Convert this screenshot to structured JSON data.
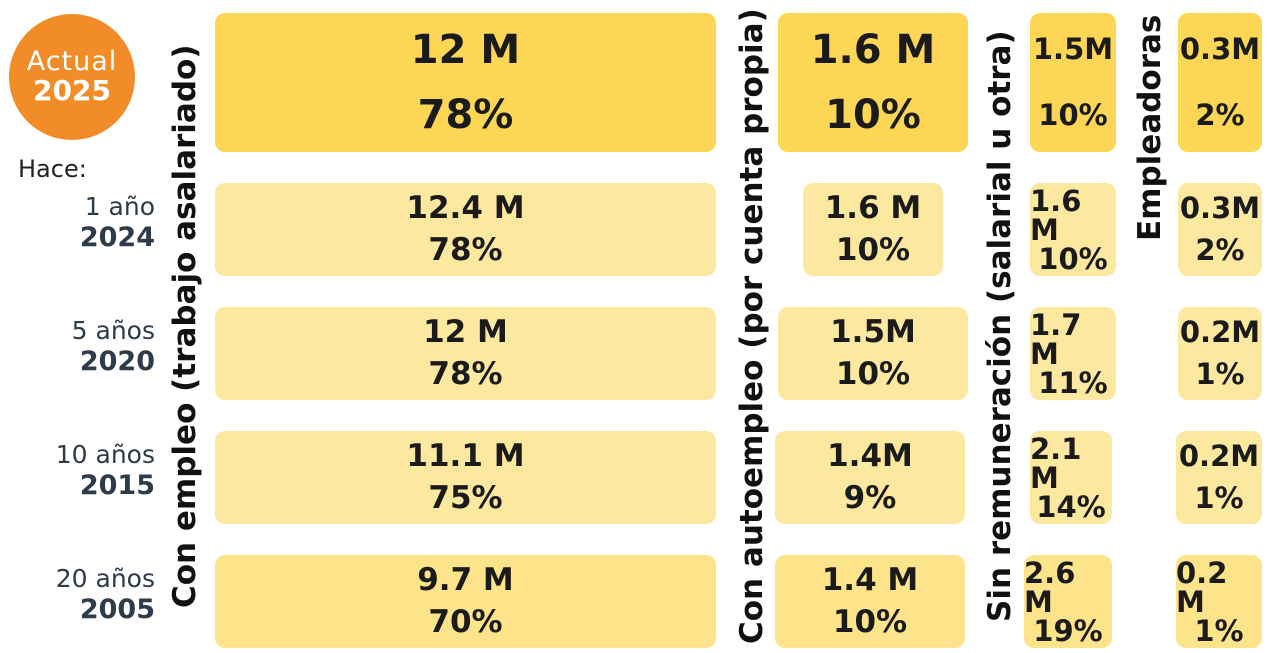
{
  "badge": {
    "line1": "Actual",
    "line2": "2025"
  },
  "hace": "Hace:",
  "headers": [
    "Con empleo (trabajo asalariado)",
    "Con autoempleo (por cuenta propia)",
    "Sin remuneración (salarial u otra)",
    "Empleadoras"
  ],
  "rows": [
    {
      "cells": [
        {
          "amount": "12 M",
          "share": "78%"
        },
        {
          "amount": "1.6 M",
          "share": "10%"
        },
        {
          "amount": "1.5M",
          "share": "10%"
        },
        {
          "amount": "0.3M",
          "share": "2%"
        }
      ]
    },
    {
      "ago": "1 año",
      "year": "2024",
      "cells": [
        {
          "amount": "12.4 M",
          "share": "78%"
        },
        {
          "amount": "1.6 M",
          "share": "10%"
        },
        {
          "amount": "1.6 M",
          "share": "10%"
        },
        {
          "amount": "0.3M",
          "share": "2%"
        }
      ]
    },
    {
      "ago": "5 años",
      "year": "2020",
      "cells": [
        {
          "amount": "12 M",
          "share": "78%"
        },
        {
          "amount": "1.5M",
          "share": "10%"
        },
        {
          "amount": "1.7 M",
          "share": "11%"
        },
        {
          "amount": "0.2M",
          "share": "1%"
        }
      ]
    },
    {
      "ago": "10 años",
      "year": "2015",
      "cells": [
        {
          "amount": "11.1 M",
          "share": "75%"
        },
        {
          "amount": "1.4M",
          "share": "9%"
        },
        {
          "amount": "2.1 M",
          "share": "14%"
        },
        {
          "amount": "0.2M",
          "share": "1%"
        }
      ]
    },
    {
      "ago": "20 años",
      "year": "2005",
      "cells": [
        {
          "amount": "9.7 M",
          "share": "70%"
        },
        {
          "amount": "1.4 M",
          "share": "10%"
        },
        {
          "amount": "2.6 M",
          "share": "19%"
        },
        {
          "amount": "0.2 M",
          "share": "1%"
        }
      ]
    }
  ]
}
